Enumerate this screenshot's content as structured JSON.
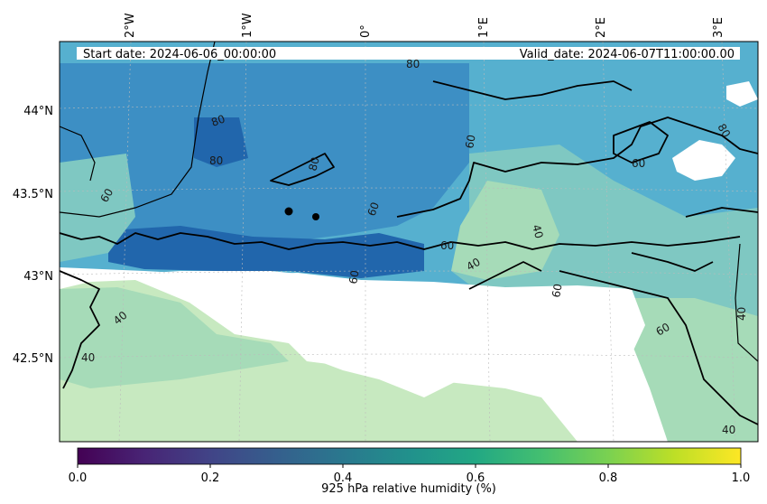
{
  "map": {
    "header": {
      "start_date": "Start date: 2024-06-06_00:00:00",
      "valid_date": "Valid_date: 2024-06-07T11:00:00.00"
    },
    "longitude_labels": [
      "2°W",
      "1°W",
      "0°",
      "1°E",
      "2°E",
      "3°E"
    ],
    "latitude_labels": [
      "44°N",
      "43.5°N",
      "43°N",
      "42.5°N"
    ],
    "contour_labels": [
      "80",
      "80",
      "80",
      "80",
      "60",
      "60",
      "60",
      "60",
      "60",
      "60",
      "40",
      "40",
      "40",
      "40",
      "40",
      "40",
      "60",
      "60",
      "80"
    ],
    "colorbar": {
      "label": "925 hPa relative humidity (%)",
      "ticks": [
        "0.0",
        "0.2",
        "0.4",
        "0.6",
        "0.8",
        "1.0"
      ],
      "colormap": "viridis"
    },
    "colors": {
      "humid_dark": "#2166ac",
      "humid_mid": "#3d8fc4",
      "humid_light": "#56b0cf",
      "moderate": "#7fc8c2",
      "dry": "#a6dbb8",
      "very_dry": "#c7e9c0"
    }
  }
}
